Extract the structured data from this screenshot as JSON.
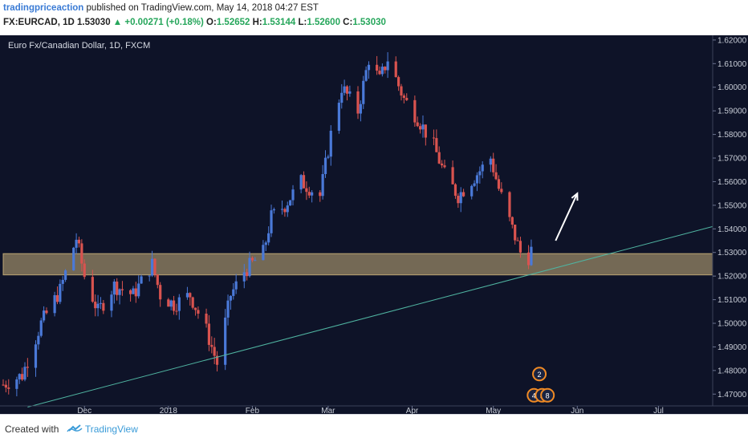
{
  "header": {
    "author": "tradingpriceaction",
    "published_text": " published on TradingView.com, May 14, 2018 04:27 EST",
    "symbol_line_prefix": "FX:EURCAD, 1D ",
    "last": "1.53030",
    "change": "▲ +0.00271 (+0.18%)",
    "o_label": " O:",
    "o_value": "1.52652",
    "h_label": " H:",
    "h_value": "1.53144",
    "l_label": " L:",
    "l_value": "1.52600",
    "c_label": " C:",
    "c_value": "1.53030"
  },
  "chart_data": {
    "type": "candlestick",
    "title": "Euro Fx/Canadian Dollar, 1D, FXCM",
    "ylim": [
      1.465,
      1.622
    ],
    "y_ticks": [
      "1.62000",
      "1.61000",
      "1.60000",
      "1.59000",
      "1.58000",
      "1.57000",
      "1.56000",
      "1.55000",
      "1.54000",
      "1.53000",
      "1.52000",
      "1.51000",
      "1.50000",
      "1.49000",
      "1.48000",
      "1.47000"
    ],
    "x_ticks": [
      {
        "label": "Dec",
        "date": "2017-12-01"
      },
      {
        "label": "2018",
        "date": "2018-01-01"
      },
      {
        "label": "Feb",
        "date": "2018-02-01"
      },
      {
        "label": "Mar",
        "date": "2018-03-01"
      },
      {
        "label": "Apr",
        "date": "2018-04-01"
      },
      {
        "label": "May",
        "date": "2018-05-01"
      },
      {
        "label": "Jun",
        "date": "2018-06-01"
      },
      {
        "label": "Jul",
        "date": "2018-07-01"
      }
    ],
    "x_range": [
      "2017-11-01",
      "2018-07-21"
    ],
    "price_path": [
      [
        "2017-11-01",
        1.474
      ],
      [
        "2017-11-08",
        1.478
      ],
      [
        "2017-11-15",
        1.5
      ],
      [
        "2017-11-22",
        1.514
      ],
      [
        "2017-11-28",
        1.536
      ],
      [
        "2017-12-01",
        1.52
      ],
      [
        "2017-12-06",
        1.505
      ],
      [
        "2017-12-12",
        1.516
      ],
      [
        "2017-12-19",
        1.512
      ],
      [
        "2017-12-26",
        1.525
      ],
      [
        "2017-12-29",
        1.512
      ],
      [
        "2018-01-03",
        1.508
      ],
      [
        "2018-01-09",
        1.512
      ],
      [
        "2018-01-15",
        1.497
      ],
      [
        "2018-01-19",
        1.483
      ],
      [
        "2018-01-24",
        1.512
      ],
      [
        "2018-01-29",
        1.522
      ],
      [
        "2018-02-05",
        1.53
      ],
      [
        "2018-02-08",
        1.545
      ],
      [
        "2018-02-13",
        1.55
      ],
      [
        "2018-02-19",
        1.56
      ],
      [
        "2018-02-26",
        1.554
      ],
      [
        "2018-03-02",
        1.58
      ],
      [
        "2018-03-06",
        1.6
      ],
      [
        "2018-03-12",
        1.59
      ],
      [
        "2018-03-16",
        1.612
      ],
      [
        "2018-03-20",
        1.603
      ],
      [
        "2018-03-23",
        1.612
      ],
      [
        "2018-03-29",
        1.595
      ],
      [
        "2018-04-03",
        1.587
      ],
      [
        "2018-04-09",
        1.575
      ],
      [
        "2018-04-13",
        1.563
      ],
      [
        "2018-04-18",
        1.554
      ],
      [
        "2018-04-24",
        1.562
      ],
      [
        "2018-04-30",
        1.57
      ],
      [
        "2018-05-03",
        1.557
      ],
      [
        "2018-05-08",
        1.54
      ],
      [
        "2018-05-11",
        1.53
      ],
      [
        "2018-05-14",
        1.528
      ],
      [
        "2018-05-15",
        1.531
      ]
    ],
    "zone": {
      "low": 1.5205,
      "high": 1.5295
    },
    "trendline": [
      [
        "2017-11-10",
        1.4645
      ],
      [
        "2018-07-21",
        1.541
      ]
    ],
    "arrow": [
      [
        "2018-05-24",
        1.535
      ],
      [
        "2018-06-01",
        1.555
      ]
    ],
    "event_badges": [
      {
        "date": "2018-05-18",
        "price": 1.4785,
        "text": "2"
      },
      {
        "date": "2018-05-16",
        "price": 1.4695,
        "text": "4"
      },
      {
        "date": "2018-05-19",
        "price": 1.4695,
        "text": "3"
      },
      {
        "date": "2018-05-21",
        "price": 1.4695,
        "text": "8"
      }
    ]
  },
  "colors": {
    "background": "#0e1328",
    "bull": "#4a79d8",
    "bear": "#d9534f",
    "zone": "#c9b07a",
    "trendline": "#4fb3a0",
    "arrow": "#ffffff",
    "axis_text": "#c7ccd6"
  },
  "footer": {
    "created_with": "Created with",
    "brand": "TradingView",
    "logo_icon": "tradingview-cloud-icon"
  }
}
